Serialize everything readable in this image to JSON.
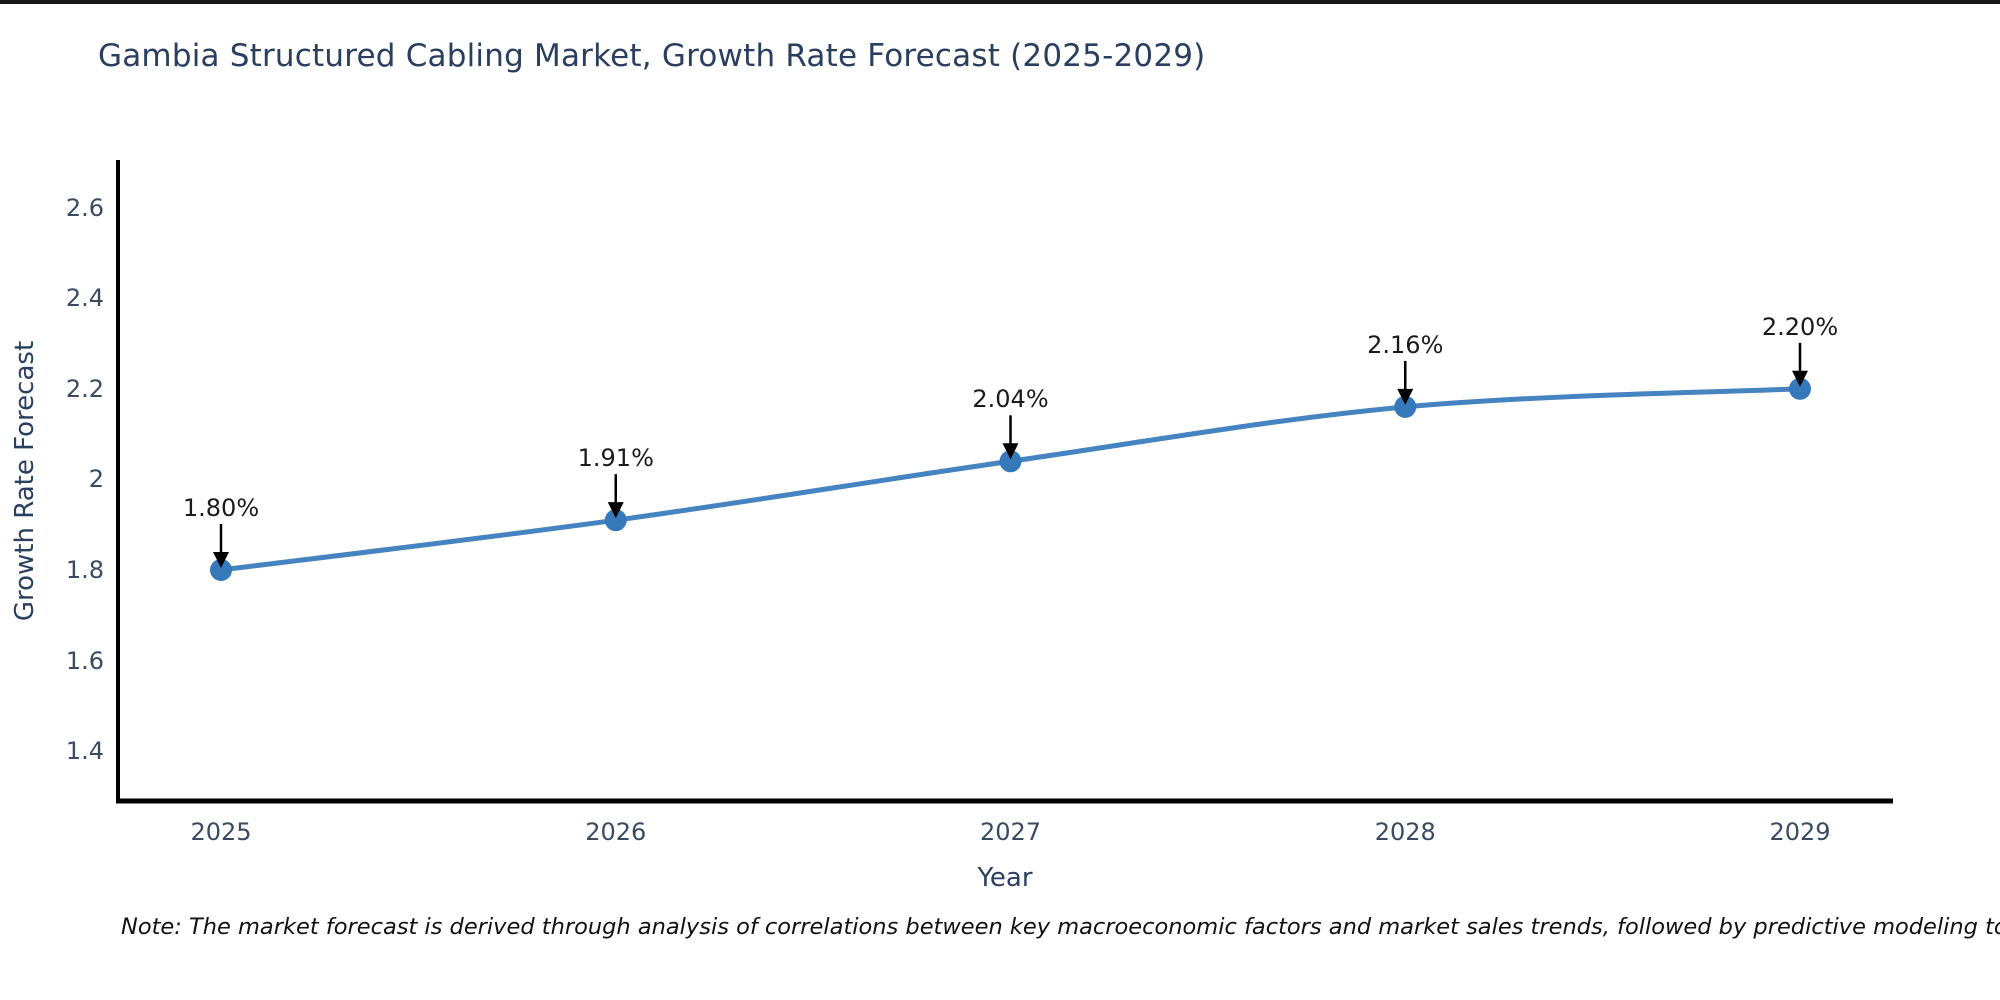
{
  "title": "Gambia Structured Cabling Market, Growth Rate Forecast (2025-2029)",
  "note": "Note: The market forecast is derived through analysis of correlations between key macroeconomic factors and market sales trends, followed by predictive modeling to project future sales",
  "colors": {
    "line": "#4583c1",
    "marker": "#3679ba",
    "axis": "#000000",
    "title_text": "#2a3f5f",
    "tick_text": "#3b4a63",
    "axis_title_text": "#2a3f5f",
    "annotation_text": "#1a1a1a",
    "arrow": "#000000",
    "note_text": "#111111"
  },
  "chart_data": {
    "type": "line",
    "title": "Gambia Structured Cabling Market, Growth Rate Forecast (2025-2029)",
    "xlabel": "Year",
    "ylabel": "Growth Rate Forecast",
    "x": [
      2025,
      2026,
      2027,
      2028,
      2029
    ],
    "xtick_labels": [
      "2025",
      "2026",
      "2027",
      "2028",
      "2029"
    ],
    "series": [
      {
        "name": "Growth Rate Forecast",
        "values": [
          1.8,
          1.91,
          2.04,
          2.16,
          2.2
        ]
      }
    ],
    "point_labels": [
      "1.80%",
      "1.91%",
      "2.04%",
      "2.16%",
      "2.20%"
    ],
    "yticks": [
      1.4,
      1.6,
      1.8,
      2,
      2.2,
      2.4,
      2.6
    ],
    "ytick_labels": [
      "1.4",
      "1.6",
      "1.8",
      "2",
      "2.2",
      "2.4",
      "2.6"
    ],
    "ylim": [
      1.283,
      2.712
    ],
    "grid": false,
    "legend": "none",
    "annotations": "black down-arrows from each percentage label to its data point",
    "line_style": "smooth spline with circular markers"
  }
}
